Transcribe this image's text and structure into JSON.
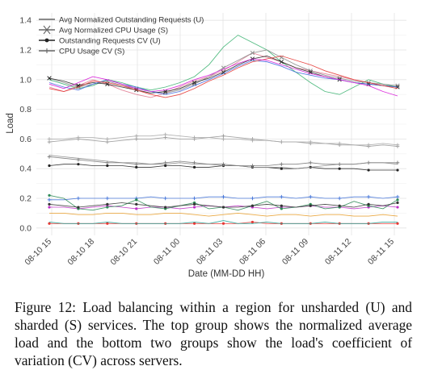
{
  "caption": "Figure 12: Load balancing within a region for unsharded (U) and sharded (S) services. The top group shows the normalized average load and the bottom two groups show the load's coefficient of variation (CV) across servers.",
  "chart_data": {
    "type": "line",
    "title": "",
    "xlabel": "Date (MM-DD HH)",
    "ylabel": "Load",
    "ylim": [
      -0.05,
      1.45
    ],
    "yticks": [
      0.0,
      0.2,
      0.4,
      0.6,
      0.8,
      1.0,
      1.2,
      1.4
    ],
    "xticks": [
      "08-10 15",
      "08-10 18",
      "08-10 21",
      "08-11 00",
      "08-11 03",
      "08-11 06",
      "08-11 09",
      "08-11 12",
      "08-11 15"
    ],
    "grid": true,
    "legend_position": "top-left",
    "legend": [
      {
        "label": "Avg Normalized Outstanding Requests (U)",
        "marker": "none",
        "color": "#666666"
      },
      {
        "label": "Avg Normalized CPU Usage (S)",
        "marker": "x",
        "color": "#666666"
      },
      {
        "label": "Outstanding Requests CV (U)",
        "marker": "dot",
        "color": "#222222"
      },
      {
        "label": "CPU Usage CV (S)",
        "marker": "plus",
        "color": "#666666"
      }
    ],
    "series": [
      {
        "color": "#e07b91",
        "marker": "none",
        "values": [
          0.95,
          0.92,
          0.96,
          1.0,
          0.97,
          0.93,
          0.9,
          0.88,
          0.91,
          0.95,
          0.99,
          1.02,
          1.06,
          1.12,
          1.18,
          1.15,
          1.12,
          1.08,
          1.06,
          1.04,
          1.02,
          1.0,
          0.98,
          0.96,
          0.95
        ]
      },
      {
        "color": "#3cb371",
        "marker": "none",
        "values": [
          1.0,
          0.97,
          0.94,
          0.96,
          1.0,
          0.98,
          0.95,
          0.93,
          0.95,
          0.98,
          1.02,
          1.1,
          1.22,
          1.3,
          1.25,
          1.2,
          1.12,
          1.05,
          0.98,
          0.92,
          0.9,
          0.95,
          1.0,
          0.97,
          0.95
        ]
      },
      {
        "color": "#8a8a8a",
        "marker": "x",
        "values": [
          1.01,
          0.98,
          0.95,
          0.97,
          0.99,
          0.96,
          0.94,
          0.92,
          0.91,
          0.93,
          0.97,
          1.02,
          1.08,
          1.13,
          1.18,
          1.2,
          1.15,
          1.1,
          1.06,
          1.03,
          1.01,
          0.99,
          0.98,
          0.97,
          0.96
        ]
      },
      {
        "color": "#222222",
        "marker": "x",
        "values": [
          1.01,
          0.99,
          0.96,
          0.98,
          0.97,
          0.95,
          0.93,
          0.91,
          0.92,
          0.94,
          0.98,
          1.01,
          1.05,
          1.1,
          1.14,
          1.16,
          1.12,
          1.08,
          1.05,
          1.02,
          1.0,
          0.98,
          0.97,
          0.96,
          0.95
        ]
      },
      {
        "color": "#4169e1",
        "marker": "none",
        "values": [
          0.98,
          0.95,
          0.93,
          0.97,
          1.0,
          0.97,
          0.95,
          0.92,
          0.9,
          0.92,
          0.96,
          1.0,
          1.04,
          1.09,
          1.13,
          1.12,
          1.09,
          1.05,
          1.03,
          1.01,
          1.0,
          0.98,
          0.97,
          0.96,
          0.95
        ]
      },
      {
        "color": "#e53935",
        "marker": "none",
        "values": [
          0.94,
          0.92,
          0.95,
          0.99,
          0.98,
          0.96,
          0.93,
          0.9,
          0.88,
          0.9,
          0.94,
          0.99,
          1.03,
          1.08,
          1.12,
          1.14,
          1.16,
          1.13,
          1.1,
          1.06,
          1.03,
          1.0,
          0.98,
          0.96,
          0.94
        ]
      },
      {
        "color": "#d81bd8",
        "marker": "none",
        "values": [
          0.97,
          0.94,
          0.98,
          1.02,
          1.0,
          0.97,
          0.94,
          0.92,
          0.93,
          0.96,
          1.0,
          1.03,
          1.07,
          1.11,
          1.14,
          1.13,
          1.1,
          1.07,
          1.04,
          1.02,
          1.0,
          0.98,
          0.96,
          0.92,
          0.89
        ]
      },
      {
        "color": "#9a9a9a",
        "marker": "plus",
        "values": [
          0.58,
          0.59,
          0.6,
          0.59,
          0.58,
          0.59,
          0.6,
          0.6,
          0.61,
          0.6,
          0.6,
          0.61,
          0.62,
          0.61,
          0.6,
          0.59,
          0.58,
          0.58,
          0.57,
          0.57,
          0.56,
          0.56,
          0.55,
          0.56,
          0.55
        ]
      },
      {
        "color": "#aaaaaa",
        "marker": "plus",
        "values": [
          0.6,
          0.6,
          0.61,
          0.61,
          0.6,
          0.61,
          0.62,
          0.62,
          0.63,
          0.62,
          0.61,
          0.61,
          0.6,
          0.6,
          0.59,
          0.59,
          0.58,
          0.58,
          0.58,
          0.57,
          0.57,
          0.56,
          0.56,
          0.57,
          0.56
        ]
      },
      {
        "color": "#222222",
        "marker": "dot",
        "values": [
          0.42,
          0.43,
          0.43,
          0.42,
          0.42,
          0.42,
          0.41,
          0.41,
          0.42,
          0.42,
          0.41,
          0.41,
          0.42,
          0.42,
          0.41,
          0.41,
          0.4,
          0.4,
          0.41,
          0.4,
          0.4,
          0.4,
          0.39,
          0.39,
          0.39
        ]
      },
      {
        "color": "#777777",
        "marker": "plus",
        "values": [
          0.48,
          0.47,
          0.46,
          0.45,
          0.44,
          0.44,
          0.43,
          0.43,
          0.44,
          0.45,
          0.44,
          0.43,
          0.43,
          0.42,
          0.42,
          0.42,
          0.43,
          0.43,
          0.44,
          0.43,
          0.43,
          0.43,
          0.44,
          0.44,
          0.44
        ]
      },
      {
        "color": "#8a8a8a",
        "marker": "none",
        "values": [
          0.49,
          0.48,
          0.47,
          0.46,
          0.45,
          0.44,
          0.44,
          0.43,
          0.43,
          0.44,
          0.43,
          0.43,
          0.42,
          0.42,
          0.41,
          0.41,
          0.41,
          0.4,
          0.41,
          0.42,
          0.43,
          0.43,
          0.44,
          0.44,
          0.43
        ]
      },
      {
        "color": "#3c6fd8",
        "marker": "plus",
        "values": [
          0.19,
          0.19,
          0.2,
          0.2,
          0.2,
          0.2,
          0.2,
          0.21,
          0.2,
          0.2,
          0.2,
          0.21,
          0.21,
          0.2,
          0.2,
          0.21,
          0.21,
          0.2,
          0.21,
          0.2,
          0.2,
          0.21,
          0.21,
          0.2,
          0.21
        ]
      },
      {
        "color": "#c030c8",
        "marker": "dot",
        "values": [
          0.14,
          0.14,
          0.13,
          0.14,
          0.15,
          0.14,
          0.13,
          0.14,
          0.14,
          0.13,
          0.14,
          0.15,
          0.14,
          0.15,
          0.14,
          0.13,
          0.14,
          0.14,
          0.15,
          0.14,
          0.14,
          0.13,
          0.14,
          0.15,
          0.14
        ]
      },
      {
        "color": "#2e8b57",
        "marker": "dot",
        "values": [
          0.22,
          0.2,
          0.13,
          0.12,
          0.14,
          0.15,
          0.19,
          0.14,
          0.13,
          0.15,
          0.17,
          0.13,
          0.14,
          0.12,
          0.15,
          0.18,
          0.13,
          0.14,
          0.16,
          0.13,
          0.14,
          0.18,
          0.15,
          0.13,
          0.19
        ]
      },
      {
        "color": "#333333",
        "marker": "dot",
        "values": [
          0.16,
          0.15,
          0.14,
          0.15,
          0.16,
          0.17,
          0.16,
          0.15,
          0.14,
          0.15,
          0.16,
          0.15,
          0.14,
          0.14,
          0.15,
          0.16,
          0.15,
          0.14,
          0.15,
          0.16,
          0.15,
          0.14,
          0.16,
          0.15,
          0.17
        ]
      },
      {
        "color": "#e8a030",
        "marker": "none",
        "values": [
          0.1,
          0.1,
          0.09,
          0.09,
          0.1,
          0.1,
          0.09,
          0.09,
          0.1,
          0.1,
          0.09,
          0.08,
          0.09,
          0.1,
          0.09,
          0.08,
          0.09,
          0.09,
          0.08,
          0.09,
          0.09,
          0.08,
          0.08,
          0.09,
          0.08
        ]
      },
      {
        "color": "#e53935",
        "marker": "dot",
        "values": [
          0.03,
          0.03,
          0.03,
          0.03,
          0.03,
          0.03,
          0.03,
          0.03,
          0.03,
          0.03,
          0.03,
          0.03,
          0.03,
          0.03,
          0.04,
          0.03,
          0.03,
          0.03,
          0.03,
          0.03,
          0.03,
          0.03,
          0.03,
          0.03,
          0.03
        ]
      },
      {
        "color": "#26a69a",
        "marker": "none",
        "values": [
          0.04,
          0.03,
          0.03,
          0.03,
          0.04,
          0.03,
          0.03,
          0.03,
          0.03,
          0.03,
          0.04,
          0.03,
          0.05,
          0.03,
          0.03,
          0.04,
          0.03,
          0.03,
          0.03,
          0.04,
          0.03,
          0.03,
          0.03,
          0.04,
          0.04
        ]
      }
    ]
  }
}
